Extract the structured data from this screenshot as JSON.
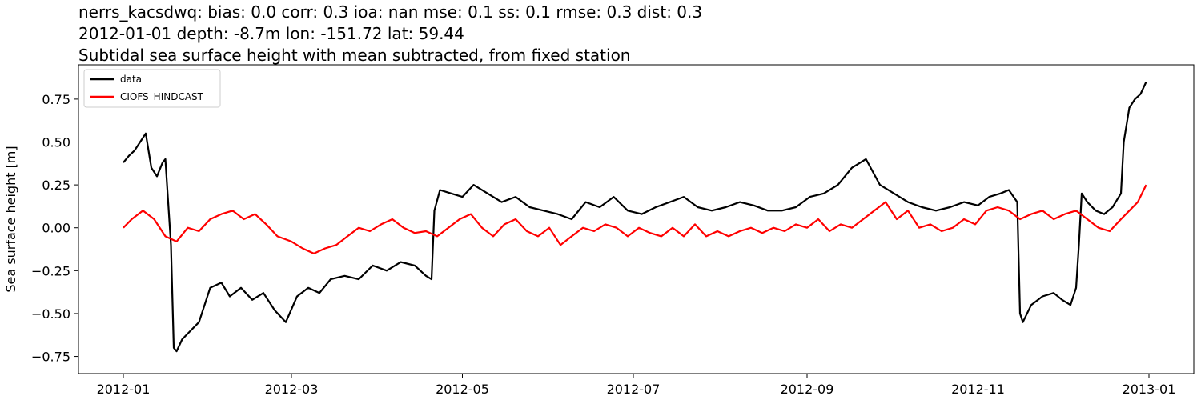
{
  "chart_data": {
    "type": "line",
    "title_lines": [
      "nerrs_kacsdwq: bias: 0.0  corr: 0.3  ioa: nan  mse: 0.1  ss: 0.1  rmse: 0.3  dist: 0.3",
      "2012-01-01 depth: -8.7m lon: -151.72 lat: 59.44",
      "Subtidal sea surface height with mean subtracted, from fixed station"
    ],
    "xlabel": "",
    "ylabel": "Sea surface height [m]",
    "xlim": [
      "2011-12-16",
      "2013-01-17"
    ],
    "ylim": [
      -0.85,
      0.95
    ],
    "x_ticks": [
      "2012-01",
      "2012-03",
      "2012-05",
      "2012-07",
      "2012-09",
      "2012-11",
      "2013-01"
    ],
    "y_ticks": [
      0.75,
      0.5,
      0.25,
      0.0,
      -0.25,
      -0.5,
      -0.75
    ],
    "y_tick_labels": [
      "0.75",
      "0.50",
      "0.25",
      "0.00",
      "−0.25",
      "−0.50",
      "−0.75"
    ],
    "grid": false,
    "legend_position": "upper-left",
    "series": [
      {
        "name": "data",
        "color": "#000000",
        "x": [
          "2012-01-01",
          "2012-01-03",
          "2012-01-05",
          "2012-01-07",
          "2012-01-09",
          "2012-01-11",
          "2012-01-13",
          "2012-01-15",
          "2012-01-16",
          "2012-01-18",
          "2012-01-19",
          "2012-01-20",
          "2012-01-22",
          "2012-01-25",
          "2012-01-28",
          "2012-02-01",
          "2012-02-05",
          "2012-02-08",
          "2012-02-12",
          "2012-02-16",
          "2012-02-20",
          "2012-02-24",
          "2012-02-28",
          "2012-03-03",
          "2012-03-07",
          "2012-03-11",
          "2012-03-15",
          "2012-03-20",
          "2012-03-25",
          "2012-03-30",
          "2012-04-04",
          "2012-04-09",
          "2012-04-14",
          "2012-04-18",
          "2012-04-20",
          "2012-04-21",
          "2012-04-23",
          "2012-04-27",
          "2012-05-01",
          "2012-05-05",
          "2012-05-10",
          "2012-05-15",
          "2012-05-20",
          "2012-05-25",
          "2012-05-30",
          "2012-06-04",
          "2012-06-09",
          "2012-06-14",
          "2012-06-19",
          "2012-06-24",
          "2012-06-29",
          "2012-07-04",
          "2012-07-09",
          "2012-07-14",
          "2012-07-19",
          "2012-07-24",
          "2012-07-29",
          "2012-08-03",
          "2012-08-08",
          "2012-08-13",
          "2012-08-18",
          "2012-08-23",
          "2012-08-28",
          "2012-09-02",
          "2012-09-07",
          "2012-09-12",
          "2012-09-17",
          "2012-09-22",
          "2012-09-27",
          "2012-10-02",
          "2012-10-07",
          "2012-10-12",
          "2012-10-17",
          "2012-10-22",
          "2012-10-27",
          "2012-11-01",
          "2012-11-05",
          "2012-11-09",
          "2012-11-12",
          "2012-11-15",
          "2012-11-16",
          "2012-11-17",
          "2012-11-20",
          "2012-11-24",
          "2012-11-28",
          "2012-12-01",
          "2012-12-04",
          "2012-12-06",
          "2012-12-07",
          "2012-12-08",
          "2012-12-10",
          "2012-12-13",
          "2012-12-16",
          "2012-12-19",
          "2012-12-22",
          "2012-12-23",
          "2012-12-25",
          "2012-12-27",
          "2012-12-29",
          "2012-12-31"
        ],
        "y": [
          0.38,
          0.42,
          0.45,
          0.5,
          0.55,
          0.35,
          0.3,
          0.38,
          0.4,
          -0.1,
          -0.7,
          -0.72,
          -0.65,
          -0.6,
          -0.55,
          -0.35,
          -0.32,
          -0.4,
          -0.35,
          -0.42,
          -0.38,
          -0.48,
          -0.55,
          -0.4,
          -0.35,
          -0.38,
          -0.3,
          -0.28,
          -0.3,
          -0.22,
          -0.25,
          -0.2,
          -0.22,
          -0.28,
          -0.3,
          0.1,
          0.22,
          0.2,
          0.18,
          0.25,
          0.2,
          0.15,
          0.18,
          0.12,
          0.1,
          0.08,
          0.05,
          0.15,
          0.12,
          0.18,
          0.1,
          0.08,
          0.12,
          0.15,
          0.18,
          0.12,
          0.1,
          0.12,
          0.15,
          0.13,
          0.1,
          0.1,
          0.12,
          0.18,
          0.2,
          0.25,
          0.35,
          0.4,
          0.25,
          0.2,
          0.15,
          0.12,
          0.1,
          0.12,
          0.15,
          0.13,
          0.18,
          0.2,
          0.22,
          0.15,
          -0.5,
          -0.55,
          -0.45,
          -0.4,
          -0.38,
          -0.42,
          -0.45,
          -0.35,
          -0.1,
          0.2,
          0.15,
          0.1,
          0.08,
          0.12,
          0.2,
          0.5,
          0.7,
          0.75,
          0.78,
          0.85
        ]
      },
      {
        "name": "CIOFS_HINDCAST",
        "color": "#ff0000",
        "x": [
          "2012-01-01",
          "2012-01-04",
          "2012-01-08",
          "2012-01-12",
          "2012-01-16",
          "2012-01-20",
          "2012-01-24",
          "2012-01-28",
          "2012-02-01",
          "2012-02-05",
          "2012-02-09",
          "2012-02-13",
          "2012-02-17",
          "2012-02-21",
          "2012-02-25",
          "2012-03-01",
          "2012-03-05",
          "2012-03-09",
          "2012-03-13",
          "2012-03-17",
          "2012-03-21",
          "2012-03-25",
          "2012-03-29",
          "2012-04-02",
          "2012-04-06",
          "2012-04-10",
          "2012-04-14",
          "2012-04-18",
          "2012-04-22",
          "2012-04-26",
          "2012-04-30",
          "2012-05-04",
          "2012-05-08",
          "2012-05-12",
          "2012-05-16",
          "2012-05-20",
          "2012-05-24",
          "2012-05-28",
          "2012-06-01",
          "2012-06-05",
          "2012-06-09",
          "2012-06-13",
          "2012-06-17",
          "2012-06-21",
          "2012-06-25",
          "2012-06-29",
          "2012-07-03",
          "2012-07-07",
          "2012-07-11",
          "2012-07-15",
          "2012-07-19",
          "2012-07-23",
          "2012-07-27",
          "2012-07-31",
          "2012-08-04",
          "2012-08-08",
          "2012-08-12",
          "2012-08-16",
          "2012-08-20",
          "2012-08-24",
          "2012-08-28",
          "2012-09-01",
          "2012-09-05",
          "2012-09-09",
          "2012-09-13",
          "2012-09-17",
          "2012-09-21",
          "2012-09-25",
          "2012-09-29",
          "2012-10-03",
          "2012-10-07",
          "2012-10-11",
          "2012-10-15",
          "2012-10-19",
          "2012-10-23",
          "2012-10-27",
          "2012-10-31",
          "2012-11-04",
          "2012-11-08",
          "2012-11-12",
          "2012-11-16",
          "2012-11-20",
          "2012-11-24",
          "2012-11-28",
          "2012-12-02",
          "2012-12-06",
          "2012-12-10",
          "2012-12-14",
          "2012-12-18",
          "2012-12-22",
          "2012-12-25",
          "2012-12-28",
          "2012-12-31"
        ],
        "y": [
          0.0,
          0.05,
          0.1,
          0.05,
          -0.05,
          -0.08,
          0.0,
          -0.02,
          0.05,
          0.08,
          0.1,
          0.05,
          0.08,
          0.02,
          -0.05,
          -0.08,
          -0.12,
          -0.15,
          -0.12,
          -0.1,
          -0.05,
          0.0,
          -0.02,
          0.02,
          0.05,
          0.0,
          -0.03,
          -0.02,
          -0.05,
          0.0,
          0.05,
          0.08,
          0.0,
          -0.05,
          0.02,
          0.05,
          -0.02,
          -0.05,
          0.0,
          -0.1,
          -0.05,
          0.0,
          -0.02,
          0.02,
          0.0,
          -0.05,
          0.0,
          -0.03,
          -0.05,
          0.0,
          -0.05,
          0.02,
          -0.05,
          -0.02,
          -0.05,
          -0.02,
          0.0,
          -0.03,
          0.0,
          -0.02,
          0.02,
          0.0,
          0.05,
          -0.02,
          0.02,
          0.0,
          0.05,
          0.1,
          0.15,
          0.05,
          0.1,
          0.0,
          0.02,
          -0.02,
          0.0,
          0.05,
          0.02,
          0.1,
          0.12,
          0.1,
          0.05,
          0.08,
          0.1,
          0.05,
          0.08,
          0.1,
          0.05,
          0.0,
          -0.02,
          0.05,
          0.1,
          0.15,
          0.25
        ]
      }
    ]
  }
}
